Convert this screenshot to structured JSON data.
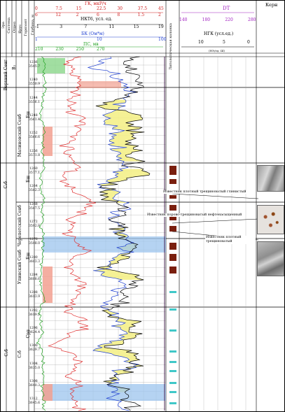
{
  "header": {
    "stratigraphy_cols": [
      "Эра",
      "Система",
      "Отдел",
      "Ярус",
      "Горизонт"
    ],
    "depth_title": "Глубина, м",
    "gk_label": "ГК, мкР/ч",
    "gk_ticks_top": [
      "0",
      "7.5",
      "15",
      "22.5",
      "30",
      "37.5",
      "45"
    ],
    "gk_ticks_bottom": [
      "6",
      "12",
      "2",
      "6",
      "8",
      "1.5",
      "2"
    ],
    "nkt_label": "НКТ6, усл. ед.",
    "nkt_ticks": [
      "-1",
      "3",
      "7",
      "11",
      "15",
      "19"
    ],
    "bk_label": "БК (Ом*м)",
    "bk_ticks": [
      "1",
      "10",
      "100"
    ],
    "ps_label": "ПС, мв",
    "ps_ticks": [
      "210",
      "230",
      "250",
      "270"
    ],
    "litho_label": "Литологическая колонка",
    "dt_label": "DT",
    "dt_ticks": [
      "140",
      "180",
      "220",
      "280"
    ],
    "ngk_label": "НГК (усл.ед.)",
    "ngk_ticks": [
      "10",
      "5",
      "0"
    ],
    "ngk_sub": "(НЭ/ед. Ш)",
    "core_label": "Керн"
  },
  "strat_col": {
    "era": "С₂б",
    "system_top": "Верхний Сенг",
    "horizon_top": "В₂",
    "middle": "С₂б",
    "lower": "С₂б"
  },
  "horizons": [
    {
      "label": "Малиновский Сенб",
      "sub": "Бш"
    },
    {
      "label": "Черепетский Сенб",
      "sub": "Бш"
    },
    {
      "label": "Упинский Сенб",
      "sub": "Бш"
    },
    {
      "label": "С₂б",
      "sub": "Срп"
    }
  ],
  "depth_labels": [
    "1236",
    "3545.7",
    "1240",
    "3550.9",
    "1244",
    "3556.1",
    "1248",
    "3561.4",
    "1252",
    "3566.6",
    "1256",
    "3571.8",
    "1260",
    "3577.1",
    "1264",
    "3582.3",
    "1268",
    "3587.5",
    "1272",
    "3592.8",
    "1276",
    "3598.0",
    "1280",
    "3603.3",
    "1284",
    "3608.6",
    "1288",
    "3613.9",
    "1292",
    "3619.2",
    "1296",
    "3624.4",
    "1300",
    "3629.7",
    "1304",
    "3635.0",
    "1308",
    "3640.3",
    "1312",
    "3645.6"
  ],
  "annotations": [
    "Известняк плотный трещиноватый глинистый",
    "Известняк порово-трещиноватый нефтенасыщенный",
    "Известняк плотный трещиноватый"
  ],
  "colors": {
    "gk": "#e03030",
    "nkt": "#2040d0",
    "bk": "#000000",
    "ps": "#20a020",
    "dt": "#a020c0",
    "ngk": "#000000",
    "fill_yellow": "#f4f08a",
    "fill_blue": "#9cc4ee",
    "fill_red": "#f2a090",
    "fill_green": "#90d890",
    "fill_cyan": "#a8e8e8",
    "litho_brown": "#7a1f0e",
    "litho_cyan": "#40c8c8"
  }
}
